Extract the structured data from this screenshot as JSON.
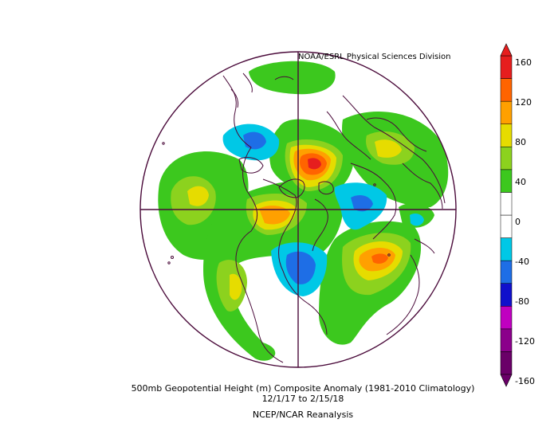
{
  "credit": "NOAA/ESRL Physical Sciences Division",
  "caption": {
    "line1": "500mb Geopotential Height (m) Composite Anomaly (1981-2010 Climatology)",
    "line2": "12/1/17  to 2/15/18",
    "line3": "NCEP/NCAR Reanalysis"
  },
  "colorbar": {
    "ticks": [
      "160",
      "120",
      "80",
      "40",
      "0",
      "-40",
      "-80",
      "-120",
      "-160"
    ],
    "colors": [
      "#6a0068",
      "#8b008b",
      "#c000c0",
      "#1010cc",
      "#1e6ee6",
      "#00c8e6",
      "#ffffff",
      "#ffffff",
      "#3cc81e",
      "#8cd21e",
      "#e6dc00",
      "#ffa000",
      "#ff6400",
      "#e61e1e"
    ]
  },
  "map": {
    "projection": "north polar stereographic",
    "coastline_color": "#4a0a3a"
  }
}
